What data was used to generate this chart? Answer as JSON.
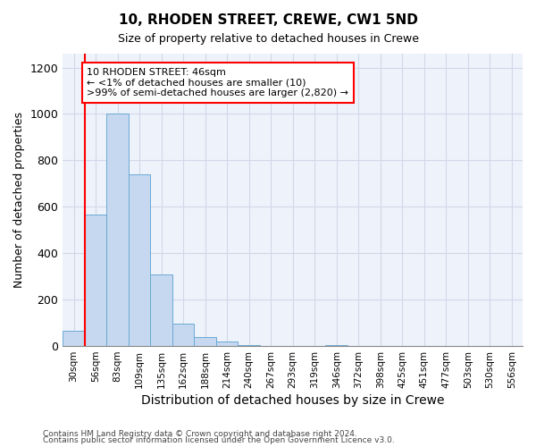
{
  "title": "10, RHODEN STREET, CREWE, CW1 5ND",
  "subtitle": "Size of property relative to detached houses in Crewe",
  "xlabel": "Distribution of detached houses by size in Crewe",
  "ylabel": "Number of detached properties",
  "categories": [
    "30sqm",
    "56sqm",
    "83sqm",
    "109sqm",
    "135sqm",
    "162sqm",
    "188sqm",
    "214sqm",
    "240sqm",
    "267sqm",
    "293sqm",
    "319sqm",
    "346sqm",
    "372sqm",
    "398sqm",
    "425sqm",
    "451sqm",
    "477sqm",
    "503sqm",
    "530sqm",
    "556sqm"
  ],
  "values": [
    65,
    565,
    1000,
    740,
    310,
    95,
    40,
    20,
    5,
    0,
    0,
    0,
    5,
    0,
    0,
    0,
    0,
    0,
    0,
    0,
    0
  ],
  "bar_color": "#c5d8f0",
  "bar_edge_color": "#6aaad4",
  "ylim": [
    0,
    1260
  ],
  "yticks": [
    0,
    200,
    400,
    600,
    800,
    1000,
    1200
  ],
  "red_line_x": 0.5,
  "annotation_title": "10 RHODEN STREET: 46sqm",
  "annotation_line1": "← <1% of detached houses are smaller (10)",
  "annotation_line2": ">99% of semi-detached houses are larger (2,820) →",
  "footer_line1": "Contains HM Land Registry data © Crown copyright and database right 2024.",
  "footer_line2": "Contains public sector information licensed under the Open Government Licence v3.0.",
  "background_color": "#eef2fb",
  "grid_color": "#d0d8e8"
}
